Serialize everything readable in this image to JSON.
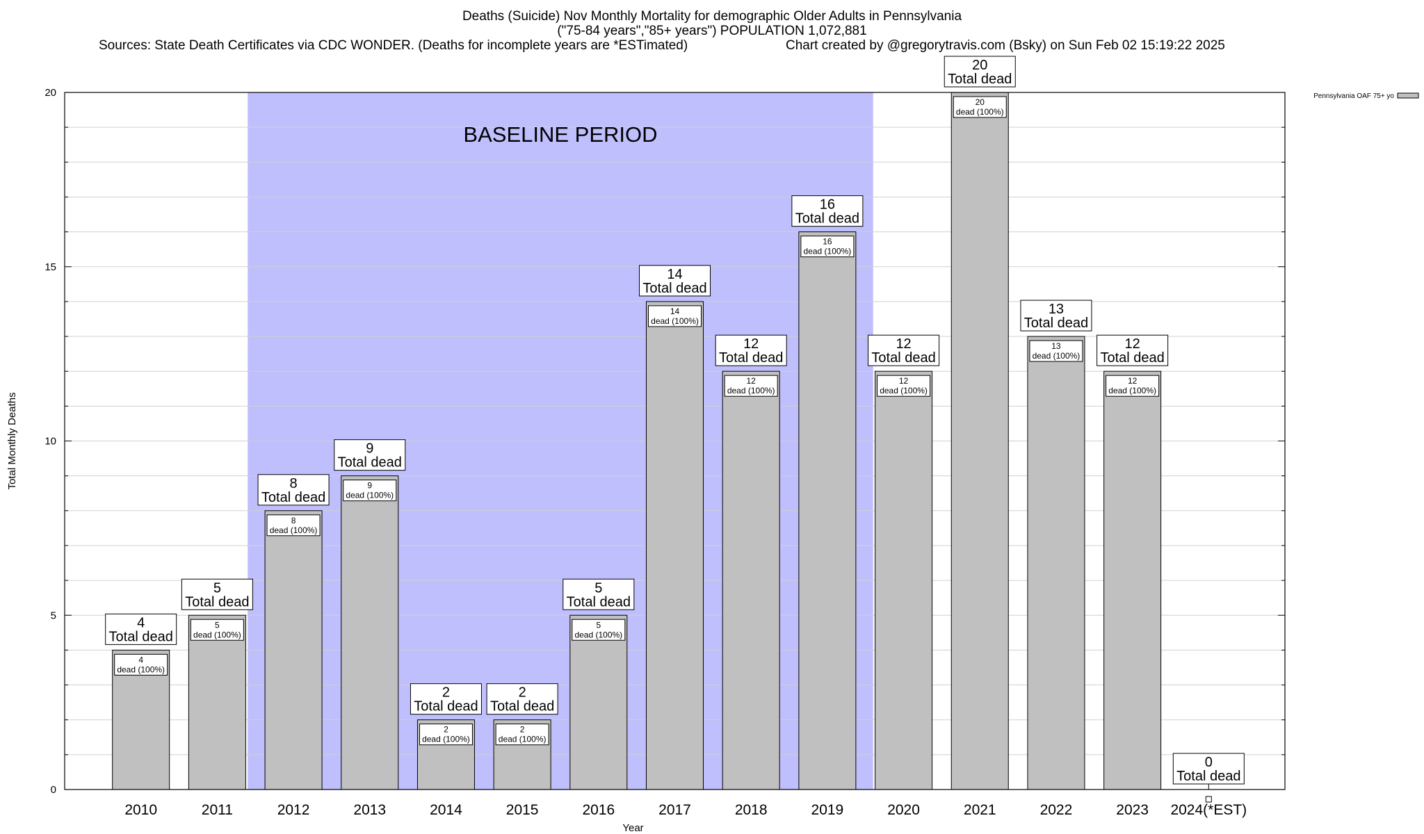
{
  "title_line1": "Deaths (Suicide) Nov Monthly Mortality for demographic Older Adults in Pennsylvania",
  "title_line2": "(\"75-84 years\",\"85+ years\") POPULATION 1,072,881",
  "sources": "Sources: State Death Certificates via CDC WONDER. (Deaths for incomplete years are *ESTimated)",
  "credit": "Chart created by @gregorytravis.com (Bsky) on Sun Feb 02 15:19:22 2025",
  "colors": {
    "bar": "#c0c0c0",
    "baseline": "#bfbffd",
    "grid": "#d0d0d0"
  },
  "chart_data": {
    "type": "bar",
    "xlabel": "Year",
    "ylabel": "Total Monthly Deaths",
    "ylim": [
      0,
      20
    ],
    "y_ticks": [
      0,
      5,
      10,
      15,
      20
    ],
    "grid": true,
    "legend": {
      "position": "top-right",
      "label": "Pennsylvania OAF 75+ yo"
    },
    "categories": [
      "2010",
      "2011",
      "2012",
      "2013",
      "2014",
      "2015",
      "2016",
      "2017",
      "2018",
      "2019",
      "2020",
      "2021",
      "2022",
      "2023",
      "2024(*EST)"
    ],
    "values": [
      4,
      5,
      8,
      9,
      2,
      2,
      5,
      14,
      12,
      16,
      12,
      20,
      13,
      12,
      0
    ],
    "total_label": "Total dead",
    "bar_label_suffix": "dead (100%)",
    "baseline": {
      "label": "BASELINE PERIOD",
      "start": "2012",
      "end": "2019"
    }
  }
}
